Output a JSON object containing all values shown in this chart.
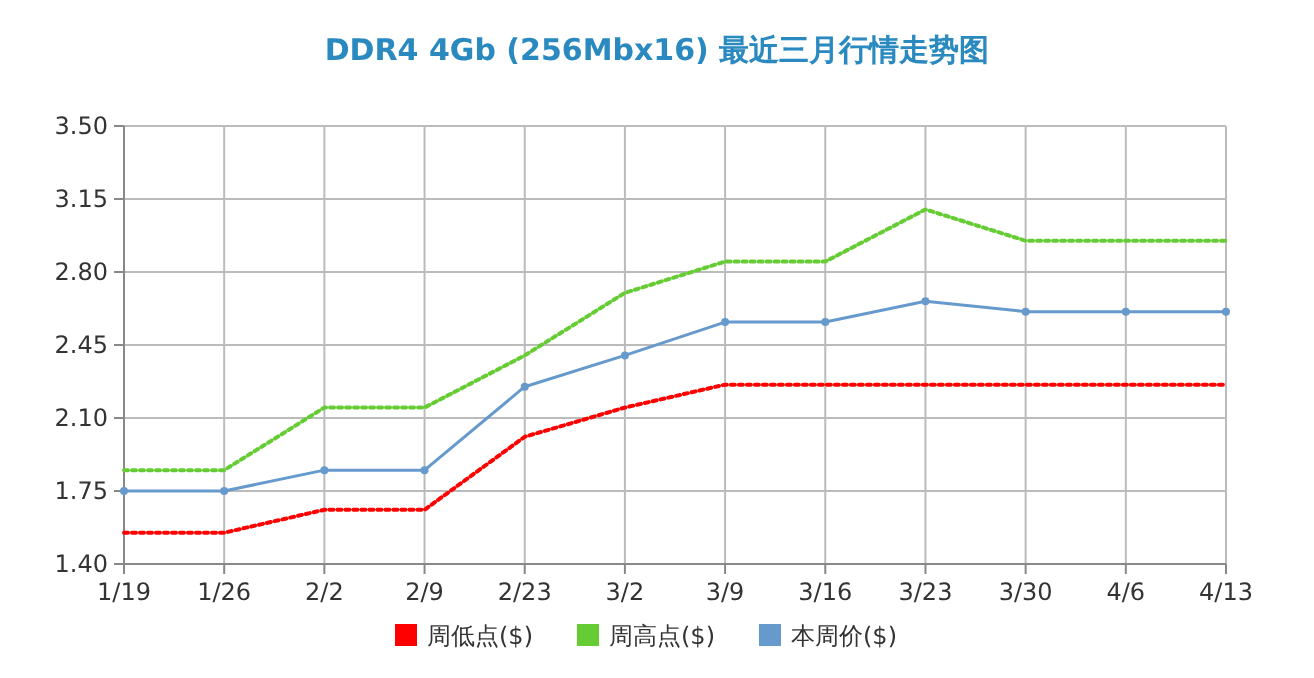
{
  "chart_data": {
    "type": "line",
    "title": "DDR4 4Gb (256Mbx16) 最近三月行情走势图",
    "categories": [
      "1/19",
      "1/26",
      "2/2",
      "2/9",
      "2/23",
      "3/2",
      "3/9",
      "3/16",
      "3/23",
      "3/30",
      "4/6",
      "4/13"
    ],
    "series": [
      {
        "name": "周低点($)",
        "color": "#ff0000",
        "line_style": "dotted",
        "marker": "none",
        "values": [
          1.55,
          1.55,
          1.66,
          1.66,
          2.01,
          2.15,
          2.26,
          2.26,
          2.26,
          2.26,
          2.26,
          2.26
        ]
      },
      {
        "name": "周高点($)",
        "color": "#66cc33",
        "line_style": "dotted",
        "marker": "none",
        "values": [
          1.85,
          1.85,
          2.15,
          2.15,
          2.4,
          2.7,
          2.85,
          2.85,
          3.1,
          2.95,
          2.95,
          2.95
        ]
      },
      {
        "name": "本周价($)",
        "color": "#6699cc",
        "line_style": "solid",
        "marker": "circle",
        "values": [
          1.75,
          1.75,
          1.85,
          1.85,
          2.25,
          2.4,
          2.56,
          2.56,
          2.66,
          2.61,
          2.61,
          2.61
        ]
      }
    ],
    "ylim": [
      1.4,
      3.5
    ],
    "yticks": [
      {
        "value": 1.4,
        "label": "1.40"
      },
      {
        "value": 1.75,
        "label": "1.75"
      },
      {
        "value": 2.1,
        "label": "2.10"
      },
      {
        "value": 2.45,
        "label": "2.45"
      },
      {
        "value": 2.8,
        "label": "2.80"
      },
      {
        "value": 3.15,
        "label": "3.15"
      },
      {
        "value": 3.5,
        "label": "3.50"
      }
    ],
    "grid": true,
    "legend": "bottom"
  }
}
